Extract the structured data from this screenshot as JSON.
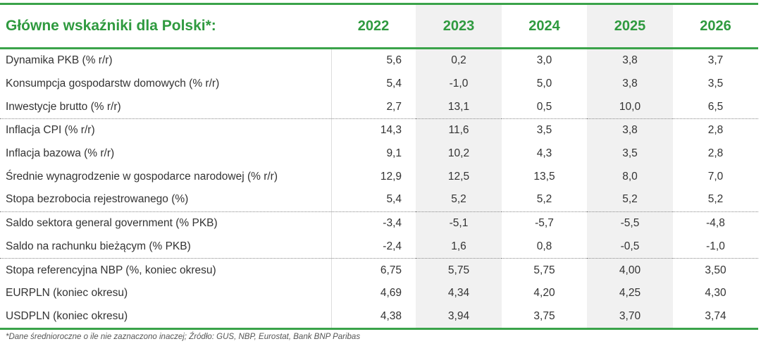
{
  "header": {
    "title": "Główne wskaźniki dla Polski*:",
    "columns": [
      "2022",
      "2023",
      "2024",
      "2025",
      "2026"
    ]
  },
  "rows": [
    {
      "label": "Dynamika PKB  (% r/r)",
      "values": [
        "5,6",
        "0,2",
        "3,0",
        "3,8",
        "3,7"
      ]
    },
    {
      "label": "Konsumpcja gospodarstw domowych (% r/r)",
      "values": [
        "5,4",
        "-1,0",
        "5,0",
        "3,8",
        "3,5"
      ]
    },
    {
      "label": "Inwestycje brutto (% r/r)",
      "values": [
        "2,7",
        "13,1",
        "0,5",
        "10,0",
        "6,5"
      ]
    },
    {
      "label": "Inflacja CPI (% r/r)",
      "values": [
        "14,3",
        "11,6",
        "3,5",
        "3,8",
        "2,8"
      ]
    },
    {
      "label": "Inflacja bazowa (% r/r)",
      "values": [
        "9,1",
        "10,2",
        "4,3",
        "3,5",
        "2,8"
      ]
    },
    {
      "label": "Średnie wynagrodzenie w gospodarce narodowej (% r/r)",
      "values": [
        "12,9",
        "12,5",
        "13,5",
        "8,0",
        "7,0"
      ]
    },
    {
      "label": "Stopa bezrobocia rejestrowanego (%)",
      "values": [
        "5,4",
        "5,2",
        "5,2",
        "5,2",
        "5,2"
      ]
    },
    {
      "label": "Saldo sektora general government (% PKB)",
      "values": [
        "-3,4",
        "-5,1",
        "-5,7",
        "-5,5",
        "-4,8"
      ]
    },
    {
      "label": "Saldo na rachunku bieżącym (% PKB)",
      "values": [
        "-2,4",
        "1,6",
        "0,8",
        "-0,5",
        "-1,0"
      ]
    },
    {
      "label": "Stopa referencyjna NBP (%, koniec okresu)",
      "values": [
        "6,75",
        "5,75",
        "5,75",
        "4,00",
        "3,50"
      ]
    },
    {
      "label": "EURPLN (koniec okresu)",
      "values": [
        "4,69",
        "4,34",
        "4,20",
        "4,25",
        "4,30"
      ]
    },
    {
      "label": "USDPLN (koniec okresu)",
      "values": [
        "4,38",
        "3,94",
        "3,75",
        "3,70",
        "3,74"
      ]
    }
  ],
  "footnote": "*Dane średnioroczne o ile nie zaznaczono inaczej; Źródło: GUS, NBP, Eurostat, Bank BNP Paribas"
}
